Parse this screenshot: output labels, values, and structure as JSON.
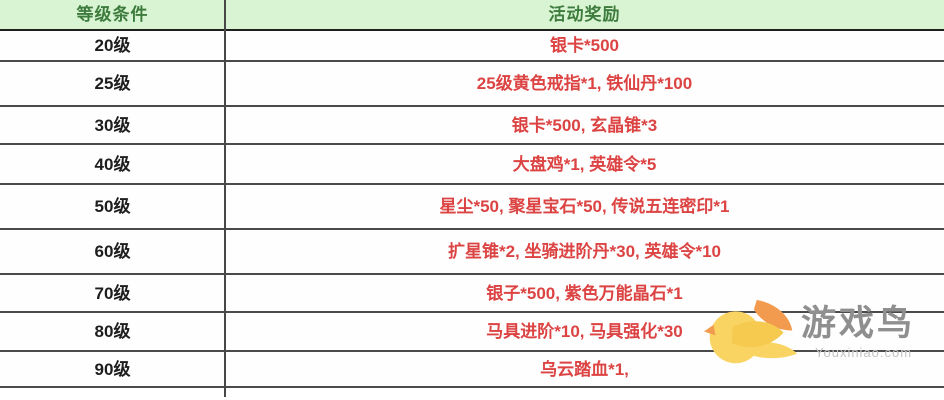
{
  "table": {
    "columns": [
      {
        "label": "等级条件"
      },
      {
        "label": "活动奖励"
      }
    ],
    "rows": [
      {
        "level": "20级",
        "reward": "银卡*500"
      },
      {
        "level": "25级",
        "reward": "25级黄色戒指*1, 铁仙丹*100"
      },
      {
        "level": "30级",
        "reward": "银卡*500, 玄晶锥*3"
      },
      {
        "level": "40级",
        "reward": "大盘鸡*1, 英雄令*5"
      },
      {
        "level": "50级",
        "reward": "星尘*50, 聚星宝石*50, 传说五连密印*1"
      },
      {
        "level": "60级",
        "reward": "扩星锥*2, 坐骑进阶丹*30, 英雄令*10"
      },
      {
        "level": "70级",
        "reward": "银子*500, 紫色万能晶石*1"
      },
      {
        "level": "80级",
        "reward": "马具进阶*10, 马具强化*30"
      },
      {
        "level": "90级",
        "reward": "乌云踏血*1,"
      }
    ]
  },
  "watermark": {
    "logo_icon": "bird-icon",
    "name": "游戏鸟",
    "url_text": "Youxiniao.com"
  },
  "colors": {
    "header_bg": "#d8f4d2",
    "header_text": "#3e7c3e",
    "level_text": "#1e1e1e",
    "reward_text": "#dc4343",
    "border": "#4a4a4a",
    "header_border": "#1f1f1f",
    "watermark_name_text": "#8f8f8f",
    "watermark_url_text": "#c3c3c3",
    "bird_yellow": "#f9d463",
    "bird_orange": "#f29b4e"
  }
}
